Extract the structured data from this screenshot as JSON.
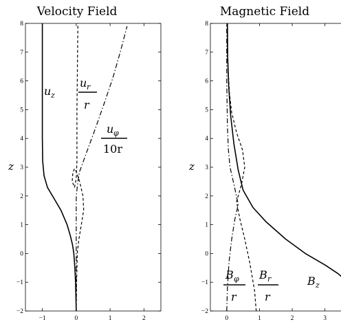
{
  "chart_data": [
    {
      "type": "line",
      "title": "Velocity Field",
      "ylabel": "z",
      "xlabel": "",
      "xlim": [
        -1.5,
        2.5
      ],
      "ylim": [
        -2,
        8
      ],
      "xticks": [
        "−1",
        "0",
        "1",
        "2"
      ],
      "xtick_values": [
        -1,
        0,
        1,
        2
      ],
      "yticks": [
        "−2",
        "−1",
        "0",
        "1",
        "2",
        "3",
        "4",
        "5",
        "6",
        "7",
        "8"
      ],
      "ytick_values": [
        -2,
        -1,
        0,
        1,
        2,
        3,
        4,
        5,
        6,
        7,
        8
      ],
      "grid": false,
      "series": [
        {
          "style": "solid",
          "points": [
            [
              0.0,
              -2.0
            ],
            [
              -0.01,
              -1.5
            ],
            [
              -0.02,
              -1.0
            ],
            [
              -0.04,
              -0.5
            ],
            [
              -0.07,
              0.0
            ],
            [
              -0.11,
              0.3
            ],
            [
              -0.17,
              0.6
            ],
            [
              -0.27,
              1.0
            ],
            [
              -0.45,
              1.5
            ],
            [
              -0.65,
              1.9
            ],
            [
              -0.85,
              2.3
            ],
            [
              -0.95,
              2.7
            ],
            [
              -0.99,
              3.2
            ],
            [
              -1.0,
              4.0
            ],
            [
              -1.0,
              5.0
            ],
            [
              -1.0,
              6.0
            ],
            [
              -1.0,
              7.0
            ],
            [
              -1.0,
              8.0
            ]
          ]
        },
        {
          "style": "dashed",
          "points": [
            [
              0.0,
              -2.0
            ],
            [
              0.01,
              -1.0
            ],
            [
              0.03,
              0.0
            ],
            [
              0.08,
              0.5
            ],
            [
              0.15,
              1.0
            ],
            [
              0.22,
              1.5
            ],
            [
              0.2,
              2.0
            ],
            [
              0.1,
              2.5
            ],
            [
              0.0,
              2.85
            ],
            [
              -0.05,
              2.95
            ],
            [
              -0.1,
              2.8
            ],
            [
              -0.12,
              2.5
            ],
            [
              -0.05,
              2.3
            ],
            [
              0.0,
              2.6
            ],
            [
              0.02,
              3.2
            ],
            [
              0.02,
              4.0
            ],
            [
              0.02,
              5.0
            ],
            [
              0.03,
              6.0
            ],
            [
              0.04,
              7.0
            ],
            [
              0.05,
              8.0
            ]
          ]
        },
        {
          "style": "dashdot",
          "points": [
            [
              0.0,
              -2.0
            ],
            [
              0.0,
              -1.0
            ],
            [
              0.0,
              0.0
            ],
            [
              0.0,
              1.0
            ],
            [
              0.0,
              2.0
            ],
            [
              0.05,
              2.5
            ],
            [
              0.1,
              2.85
            ],
            [
              0.3,
              3.5
            ],
            [
              0.55,
              4.3
            ],
            [
              0.82,
              5.2
            ],
            [
              1.08,
              6.1
            ],
            [
              1.3,
              7.0
            ],
            [
              1.5,
              7.9
            ]
          ]
        }
      ],
      "annotations": [
        {
          "kind": "sub",
          "base": "u",
          "sub": "z"
        },
        {
          "kind": "frac",
          "base": "u",
          "sub": "r",
          "den": "r"
        },
        {
          "kind": "frac",
          "base": "u",
          "sub": "φ",
          "den": "10r"
        }
      ]
    },
    {
      "type": "line",
      "title": "Magnetic Field",
      "ylabel": "z",
      "xlabel": "",
      "xlim": [
        -0.5,
        3.7
      ],
      "ylim": [
        -2,
        8
      ],
      "xticks": [
        "0",
        "1",
        "2",
        "3"
      ],
      "xtick_values": [
        0,
        1,
        2,
        3
      ],
      "yticks": [
        "−2",
        "−1",
        "0",
        "1",
        "2",
        "3",
        "4",
        "5",
        "6",
        "7",
        "8"
      ],
      "ytick_values": [
        -2,
        -1,
        0,
        1,
        2,
        3,
        4,
        5,
        6,
        7,
        8
      ],
      "grid": false,
      "series": [
        {
          "style": "solid",
          "points": [
            [
              3.7,
              -1.0
            ],
            [
              3.4,
              -0.7
            ],
            [
              3.0,
              -0.4
            ],
            [
              2.4,
              0.0
            ],
            [
              1.8,
              0.5
            ],
            [
              1.2,
              1.1
            ],
            [
              0.8,
              1.6
            ],
            [
              0.5,
              2.2
            ],
            [
              0.35,
              2.9
            ],
            [
              0.22,
              3.8
            ],
            [
              0.12,
              4.8
            ],
            [
              0.06,
              5.8
            ],
            [
              0.03,
              6.8
            ],
            [
              0.02,
              8.0
            ]
          ]
        },
        {
          "style": "dashed",
          "points": [
            [
              0.9,
              -2.0
            ],
            [
              0.85,
              -1.3
            ],
            [
              0.7,
              -0.3
            ],
            [
              0.55,
              0.5
            ],
            [
              0.4,
              1.2
            ],
            [
              0.3,
              1.8
            ],
            [
              0.45,
              2.4
            ],
            [
              0.55,
              3.0
            ],
            [
              0.48,
              3.6
            ],
            [
              0.3,
              4.2
            ],
            [
              0.15,
              4.9
            ],
            [
              0.08,
              5.6
            ],
            [
              0.04,
              6.5
            ],
            [
              0.02,
              7.3
            ],
            [
              0.02,
              8.0
            ]
          ]
        },
        {
          "style": "dashdot",
          "points": [
            [
              0.0,
              -2.0
            ],
            [
              0.02,
              -1.2
            ],
            [
              0.07,
              -0.3
            ],
            [
              0.15,
              0.5
            ],
            [
              0.25,
              1.2
            ],
            [
              0.35,
              1.7
            ],
            [
              0.22,
              2.4
            ],
            [
              0.1,
              3.0
            ],
            [
              0.05,
              3.6
            ],
            [
              0.02,
              4.4
            ],
            [
              0.01,
              5.2
            ],
            [
              0.0,
              6.0
            ],
            [
              0.0,
              7.0
            ],
            [
              0.0,
              8.0
            ]
          ]
        }
      ],
      "annotations": [
        {
          "kind": "frac",
          "base": "B",
          "sub": "φ",
          "den": "r"
        },
        {
          "kind": "frac",
          "base": "B",
          "sub": "r",
          "den": "r"
        },
        {
          "kind": "sub",
          "base": "B",
          "sub": "z"
        }
      ]
    }
  ]
}
